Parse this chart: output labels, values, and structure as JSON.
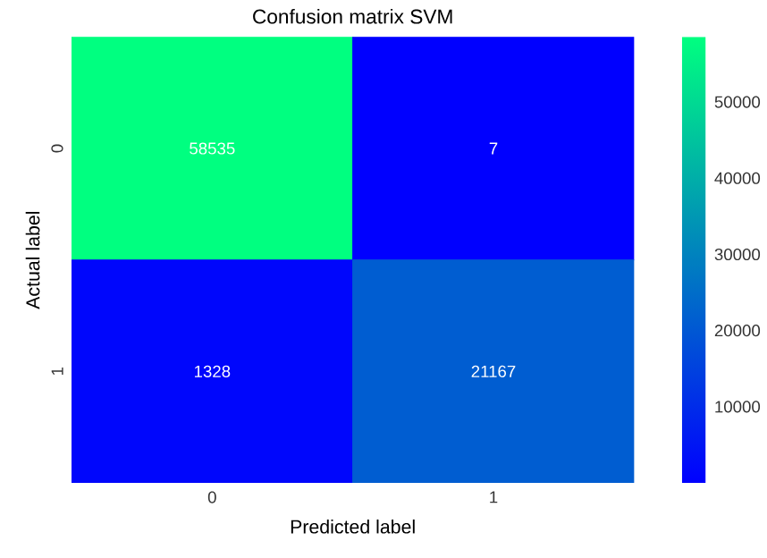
{
  "chart_data": {
    "type": "heatmap",
    "title": "Confusion matrix  SVM",
    "xlabel": "Predicted label",
    "ylabel": "Actual label",
    "categories": [
      "0",
      "1"
    ],
    "y_categories": [
      "0",
      "1"
    ],
    "cells": [
      [
        58535,
        7
      ],
      [
        1328,
        21167
      ]
    ],
    "data_labels": true,
    "clim": [
      7,
      58535
    ],
    "cticks": [
      10000,
      20000,
      30000,
      40000,
      50000
    ]
  }
}
